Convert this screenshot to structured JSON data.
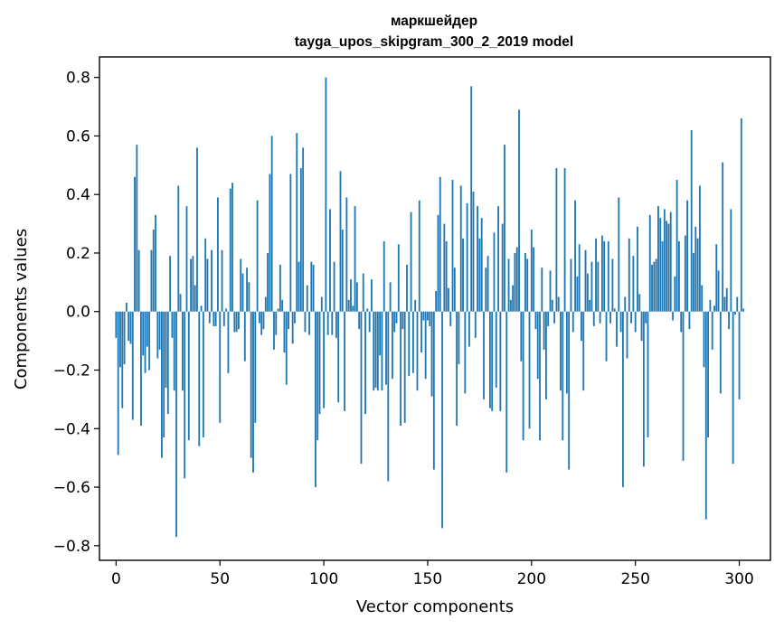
{
  "chart_data": {
    "type": "bar",
    "title_line1": "маркшейдер",
    "title_line2": "tayga_upos_skipgram_300_2_2019 model",
    "xlabel": "Vector components",
    "ylabel": "Components values",
    "xlim": [
      -8,
      315
    ],
    "ylim": [
      -0.85,
      0.87
    ],
    "xticks": [
      0,
      50,
      100,
      150,
      200,
      250,
      300
    ],
    "yticks": [
      -0.8,
      -0.6,
      -0.4,
      -0.2,
      0.0,
      0.2,
      0.4,
      0.6,
      0.8
    ],
    "ytick_labels": [
      "−0.8",
      "−0.6",
      "−0.4",
      "−0.2",
      "0.0",
      "0.2",
      "0.4",
      "0.6",
      "0.8"
    ],
    "xtick_labels": [
      "0",
      "50",
      "100",
      "150",
      "200",
      "250",
      "300"
    ],
    "grid": false,
    "bar_color": "#1f77b4",
    "values": [
      -0.09,
      -0.49,
      -0.19,
      -0.33,
      -0.18,
      0.03,
      -0.1,
      -0.11,
      -0.37,
      0.46,
      0.57,
      0.21,
      -0.39,
      -0.15,
      -0.21,
      -0.12,
      -0.2,
      0.21,
      0.28,
      0.33,
      -0.16,
      -0.13,
      -0.5,
      -0.43,
      -0.26,
      -0.35,
      0.19,
      -0.09,
      -0.27,
      -0.77,
      0.43,
      0.06,
      -0.27,
      -0.57,
      0.36,
      -0.44,
      0.18,
      0.19,
      0.09,
      0.56,
      -0.46,
      0.02,
      -0.43,
      0.25,
      0.18,
      -0.04,
      0.21,
      -0.05,
      -0.05,
      0.39,
      -0.38,
      0.21,
      -0.05,
      0.01,
      -0.21,
      0.42,
      0.44,
      -0.07,
      -0.07,
      -0.06,
      0.18,
      0.13,
      -0.17,
      0.15,
      0.1,
      -0.5,
      -0.55,
      -0.38,
      0.38,
      -0.04,
      -0.08,
      -0.06,
      0.05,
      0.2,
      0.47,
      0.6,
      -0.13,
      -0.08,
      0.01,
      0.16,
      0.04,
      -0.14,
      -0.25,
      -0.06,
      0.47,
      -0.11,
      -0.04,
      0.61,
      0.17,
      0.49,
      0.56,
      -0.07,
      0.09,
      -0.08,
      0.17,
      0.16,
      -0.6,
      -0.44,
      -0.35,
      0.05,
      -0.33,
      0.8,
      -0.08,
      0.35,
      -0.08,
      0.17,
      -0.09,
      -0.31,
      0.48,
      0.28,
      -0.34,
      0.39,
      0.04,
      0.11,
      0.02,
      0.36,
      0.1,
      -0.06,
      -0.52,
      0.13,
      -0.35,
      0.01,
      -0.07,
      0.11,
      -0.27,
      -0.26,
      -0.27,
      -0.15,
      -0.27,
      0.24,
      -0.25,
      -0.58,
      0.1,
      -0.23,
      -0.07,
      -0.04,
      0.23,
      -0.39,
      -0.06,
      -0.38,
      0.16,
      -0.22,
      0.34,
      -0.21,
      0.04,
      -0.27,
      0.38,
      -0.14,
      -0.03,
      -0.23,
      -0.03,
      -0.05,
      -0.29,
      -0.54,
      0.07,
      0.33,
      0.46,
      -0.74,
      0.3,
      0.24,
      0.08,
      -0.05,
      0.45,
      0.15,
      -0.39,
      -0.18,
      0.43,
      0.25,
      -0.28,
      0.37,
      -0.12,
      0.77,
      0.41,
      -0.09,
      0.36,
      0.25,
      0.32,
      -0.3,
      0.15,
      0.19,
      -0.33,
      -0.34,
      0.27,
      -0.26,
      0.36,
      -0.34,
      0.3,
      0.57,
      -0.55,
      0.18,
      0.04,
      0.09,
      0.2,
      0.22,
      0.69,
      -0.17,
      -0.44,
      0.2,
      0.18,
      -0.4,
      0.28,
      0.22,
      -0.06,
      -0.23,
      -0.44,
      0.15,
      -0.13,
      -0.3,
      -0.05,
      0.14,
      0.04,
      -0.04,
      0.49,
      0.05,
      -0.27,
      -0.44,
      0.49,
      -0.28,
      -0.54,
      0.18,
      -0.07,
      0.38,
      0.12,
      0.23,
      -0.1,
      -0.27,
      0.21,
      0.13,
      0.04,
      0.17,
      -0.05,
      0.25,
      0.17,
      -0.04,
      0.26,
      0.24,
      -0.17,
      0.24,
      -0.04,
      0.18,
      0.01,
      -0.12,
      0.39,
      -0.07,
      -0.6,
      0.05,
      -0.16,
      0.25,
      -0.04,
      0.19,
      -0.07,
      0.29,
      0.06,
      -0.1,
      -0.53,
      -0.04,
      -0.43,
      0.33,
      0.16,
      0.17,
      0.18,
      0.36,
      0.32,
      0.24,
      0.35,
      0.31,
      0.3,
      0.34,
      -0.03,
      0.12,
      0.45,
      0.24,
      -0.07,
      -0.51,
      0.26,
      0.38,
      -0.06,
      0.62,
      0.2,
      0.29,
      0.25,
      0.43,
      0.09,
      -0.19,
      -0.71,
      -0.43,
      0.04,
      -0.13,
      0.02,
      0.23,
      0.14,
      -0.28,
      0.51,
      0.05,
      0.08,
      -0.06,
      0.35,
      -0.52,
      -0.01,
      0.05,
      -0.3,
      0.66,
      0.01
    ]
  }
}
